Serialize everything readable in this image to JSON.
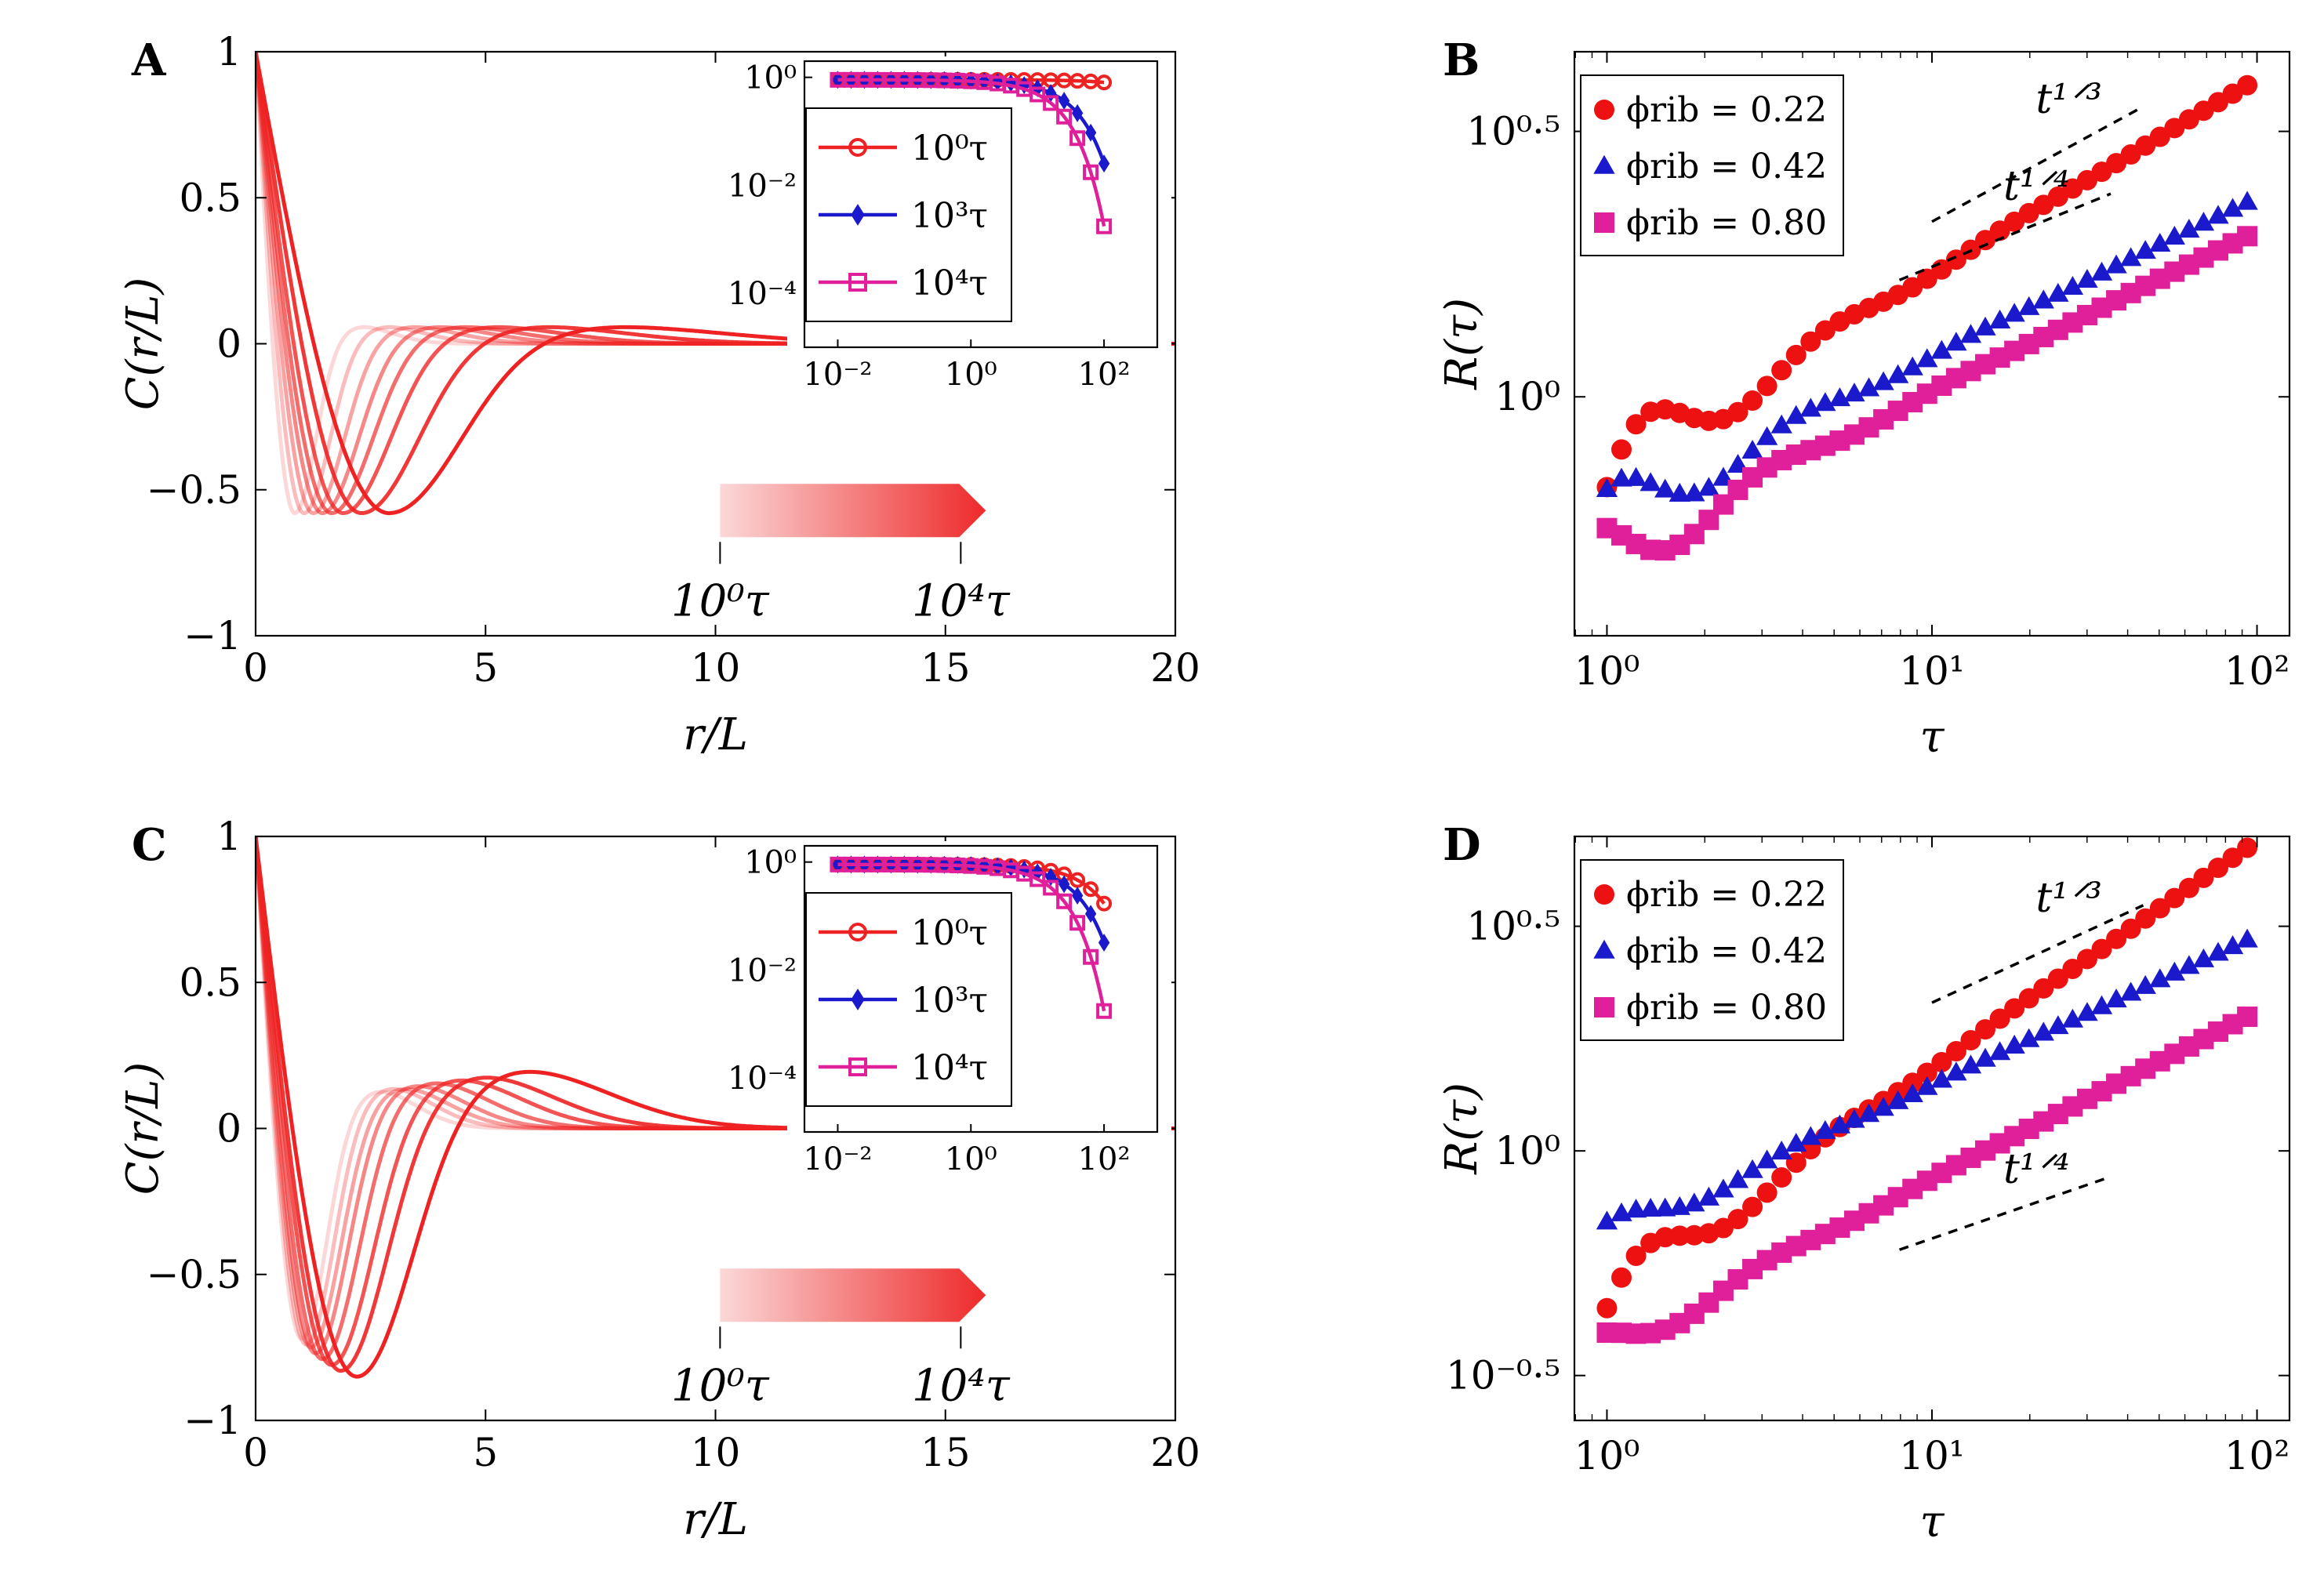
{
  "chart_data": [
    {
      "id": "A",
      "type": "line",
      "panel_label": "A",
      "xlabel": "r/L",
      "ylabel": "C(r/L)",
      "xlim": [
        0,
        20
      ],
      "ylim": [
        -1,
        1
      ],
      "xticks": [
        "0",
        "5",
        "10",
        "15",
        "20"
      ],
      "yticks": [
        "1",
        "0.5",
        "0",
        "−0.5",
        "−1"
      ],
      "series_color": "#ee2222",
      "series": [
        {
          "name": "t1",
          "min_pos": 0.85,
          "min_val": -0.58,
          "max_val": 0.06,
          "opacity": 0.18
        },
        {
          "name": "t2",
          "min_pos": 1.05,
          "min_val": -0.58,
          "max_val": 0.06,
          "opacity": 0.3
        },
        {
          "name": "t3",
          "min_pos": 1.25,
          "min_val": -0.58,
          "max_val": 0.06,
          "opacity": 0.42
        },
        {
          "name": "t4",
          "min_pos": 1.45,
          "min_val": -0.58,
          "max_val": 0.06,
          "opacity": 0.54
        },
        {
          "name": "t5",
          "min_pos": 1.65,
          "min_val": -0.58,
          "max_val": 0.06,
          "opacity": 0.66
        },
        {
          "name": "t6",
          "min_pos": 1.9,
          "min_val": -0.58,
          "max_val": 0.06,
          "opacity": 0.78
        },
        {
          "name": "t7",
          "min_pos": 2.3,
          "min_val": -0.58,
          "max_val": 0.06,
          "opacity": 0.9
        },
        {
          "name": "t8",
          "min_pos": 2.9,
          "min_val": -0.58,
          "max_val": 0.06,
          "opacity": 1.0
        }
      ],
      "colorbar": {
        "from_label": "10⁰τ",
        "to_label": "10⁴τ"
      },
      "inset": {
        "xticks": [
          "10⁻²",
          "10⁰",
          "10²"
        ],
        "yticks": [
          "10⁰",
          "10⁻²",
          "10⁻⁴"
        ],
        "xlim_log10": [
          -2.5,
          2.8
        ],
        "ylim_log10": [
          -5,
          0.3
        ],
        "series": [
          {
            "name": "10⁰τ",
            "color": "#ee2222",
            "marker": "circle",
            "decay_scale": 900,
            "exponent": 1.0
          },
          {
            "name": "10³τ",
            "color": "#1a1acc",
            "marker": "diamond",
            "decay_scale": 28,
            "exponent": 1.0
          },
          {
            "name": "10⁴τ",
            "color": "#e0209a",
            "marker": "square",
            "decay_scale": 16,
            "exponent": 1.0
          }
        ]
      }
    },
    {
      "id": "B",
      "type": "scatter",
      "panel_label": "B",
      "xlabel": "τ",
      "ylabel": "R(τ)",
      "xlim_log10": [
        -0.1,
        2.1
      ],
      "ylim_log10": [
        -0.45,
        0.65
      ],
      "xticks": [
        "10⁰",
        "10¹",
        "10²"
      ],
      "yticks": [
        "10⁰·⁵",
        "10⁰"
      ],
      "series": [
        {
          "name": "ϕrib = 0.22",
          "color": "#ee1111",
          "marker": "circle",
          "a": -0.17,
          "b": 0.36,
          "c": 0.12
        },
        {
          "name": "ϕrib = 0.42",
          "color": "#1a1acc",
          "marker": "triangle",
          "a": -0.25,
          "b": 0.295,
          "c": 0.09
        },
        {
          "name": "ϕrib = 0.80",
          "color": "#e0209a",
          "marker": "square",
          "a": -0.32,
          "b": 0.3,
          "c": 0.08
        }
      ],
      "slope_lines": [
        {
          "label": "t¹ᐟ³",
          "exp": "1/3",
          "x0": 1.0,
          "x1": 1.65,
          "y0": 0.33
        },
        {
          "label": "t¹ᐟ⁴",
          "exp": "1/4",
          "x0": 0.9,
          "x1": 1.55,
          "y0": 0.22
        }
      ]
    },
    {
      "id": "C",
      "type": "line",
      "panel_label": "C",
      "xlabel": "r/L",
      "ylabel": "C(r/L)",
      "xlim": [
        0,
        20
      ],
      "ylim": [
        -1,
        1
      ],
      "xticks": [
        "0",
        "5",
        "10",
        "15",
        "20"
      ],
      "yticks": [
        "1",
        "0.5",
        "0",
        "−0.5",
        "−1"
      ],
      "series_color": "#ee2222",
      "series": [
        {
          "name": "t1",
          "min_pos": 1.0,
          "min_val": -0.72,
          "max_val": 0.13,
          "opacity": 0.18
        },
        {
          "name": "t2",
          "min_pos": 1.1,
          "min_val": -0.74,
          "max_val": 0.14,
          "opacity": 0.3
        },
        {
          "name": "t3",
          "min_pos": 1.2,
          "min_val": -0.75,
          "max_val": 0.14,
          "opacity": 0.42
        },
        {
          "name": "t4",
          "min_pos": 1.3,
          "min_val": -0.77,
          "max_val": 0.15,
          "opacity": 0.54
        },
        {
          "name": "t5",
          "min_pos": 1.45,
          "min_val": -0.79,
          "max_val": 0.16,
          "opacity": 0.66
        },
        {
          "name": "t6",
          "min_pos": 1.65,
          "min_val": -0.81,
          "max_val": 0.17,
          "opacity": 0.78
        },
        {
          "name": "t7",
          "min_pos": 1.85,
          "min_val": -0.83,
          "max_val": 0.18,
          "opacity": 0.9
        },
        {
          "name": "t8",
          "min_pos": 2.2,
          "min_val": -0.85,
          "max_val": 0.2,
          "opacity": 1.0
        }
      ],
      "colorbar": {
        "from_label": "10⁰τ",
        "to_label": "10⁴τ"
      },
      "inset": {
        "xticks": [
          "10⁻²",
          "10⁰",
          "10²"
        ],
        "yticks": [
          "10⁰",
          "10⁻²",
          "10⁻⁴"
        ],
        "xlim_log10": [
          -2.5,
          2.8
        ],
        "ylim_log10": [
          -5,
          0.3
        ],
        "series": [
          {
            "name": "10⁰τ",
            "color": "#ee2222",
            "marker": "circle",
            "decay_scale": 60,
            "exponent": 1.0
          },
          {
            "name": "10³τ",
            "color": "#1a1acc",
            "marker": "diamond",
            "decay_scale": 30,
            "exponent": 1.0
          },
          {
            "name": "10⁴τ",
            "color": "#e0209a",
            "marker": "square",
            "decay_scale": 16,
            "exponent": 1.0
          }
        ]
      }
    },
    {
      "id": "D",
      "type": "scatter",
      "panel_label": "D",
      "xlabel": "τ",
      "ylabel": "R(τ)",
      "xlim_log10": [
        -0.1,
        2.1
      ],
      "ylim_log10": [
        -0.6,
        0.7
      ],
      "xticks": [
        "10⁰",
        "10¹",
        "10²"
      ],
      "yticks": [
        "10⁰·⁵",
        "10⁰",
        "10⁻⁰·⁵"
      ],
      "series": [
        {
          "name": "ϕrib = 0.22",
          "color": "#ee1111",
          "marker": "circle",
          "a": -0.35,
          "b": 0.5,
          "c": 0.1
        },
        {
          "name": "ϕrib = 0.42",
          "color": "#1a1acc",
          "marker": "triangle",
          "a": -0.2,
          "b": 0.33,
          "c": 0.05
        },
        {
          "name": "ϕrib = 0.80",
          "color": "#e0209a",
          "marker": "square",
          "a": -0.45,
          "b": 0.37,
          "c": 0.05
        }
      ],
      "slope_lines": [
        {
          "label": "t¹ᐟ³",
          "exp": "1/3",
          "x0": 1.0,
          "x1": 1.65,
          "y0": 0.33
        },
        {
          "label": "t¹ᐟ⁴",
          "exp": "1/4",
          "x0": 0.9,
          "x1": 1.55,
          "y0": -0.22
        }
      ]
    }
  ]
}
